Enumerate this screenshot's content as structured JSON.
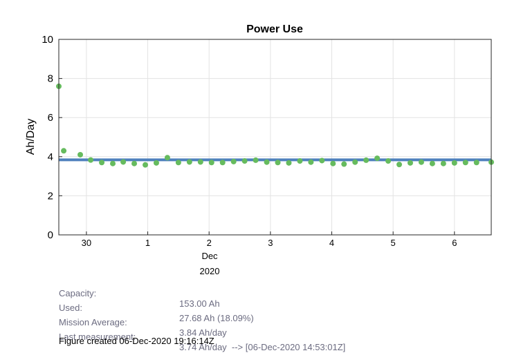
{
  "chart_data": {
    "type": "scatter",
    "title": "Power Use",
    "xlabel_lines": [
      "Dec",
      "2020"
    ],
    "ylabel": "Ah/Day",
    "ylim": [
      0,
      10
    ],
    "yticks": [
      0,
      2,
      4,
      6,
      8,
      10
    ],
    "xlim": [
      -0.45,
      6.6
    ],
    "xticks": [
      {
        "value": 0,
        "label": "30"
      },
      {
        "value": 1,
        "label": "1"
      },
      {
        "value": 2,
        "label": "2"
      },
      {
        "value": 3,
        "label": "3"
      },
      {
        "value": 4,
        "label": "4"
      },
      {
        "value": 5,
        "label": "5"
      },
      {
        "value": 6,
        "label": "6"
      }
    ],
    "grid": true,
    "average_line": {
      "value": 3.84,
      "color": "#4f81bd"
    },
    "point_color": "#66bb5e",
    "series": [
      {
        "x": [
          -0.45,
          -0.37,
          -0.1,
          0.07,
          0.25,
          0.43,
          0.6,
          0.78,
          0.96,
          1.14,
          1.32,
          1.5,
          1.68,
          1.86,
          2.04,
          2.22,
          2.4,
          2.58,
          2.76,
          2.94,
          3.12,
          3.3,
          3.48,
          3.66,
          3.84,
          4.02,
          4.2,
          4.38,
          4.56,
          4.74,
          4.92,
          5.1,
          5.28,
          5.46,
          5.64,
          5.82,
          6.0,
          6.18,
          6.36,
          6.6
        ],
        "y": [
          7.6,
          4.3,
          4.1,
          3.83,
          3.7,
          3.65,
          3.73,
          3.65,
          3.58,
          3.68,
          3.95,
          3.7,
          3.73,
          3.73,
          3.7,
          3.7,
          3.75,
          3.78,
          3.82,
          3.72,
          3.7,
          3.68,
          3.78,
          3.72,
          3.8,
          3.65,
          3.62,
          3.72,
          3.82,
          3.92,
          3.78,
          3.6,
          3.68,
          3.72,
          3.65,
          3.65,
          3.68,
          3.7,
          3.7,
          3.72
        ]
      }
    ]
  },
  "info": [
    {
      "label": "Capacity:",
      "value": "153.00 Ah"
    },
    {
      "label": "Used:",
      "value": "27.68 Ah (18.09%)"
    },
    {
      "label": "Mission Average:",
      "value": "3.84 Ah/day"
    },
    {
      "label": "Last measurement:",
      "value": "3.74 Ah/day  --> [06-Dec-2020 14:53:01Z]"
    }
  ],
  "footer": "Figure created 06-Dec-2020 19:16:14Z"
}
